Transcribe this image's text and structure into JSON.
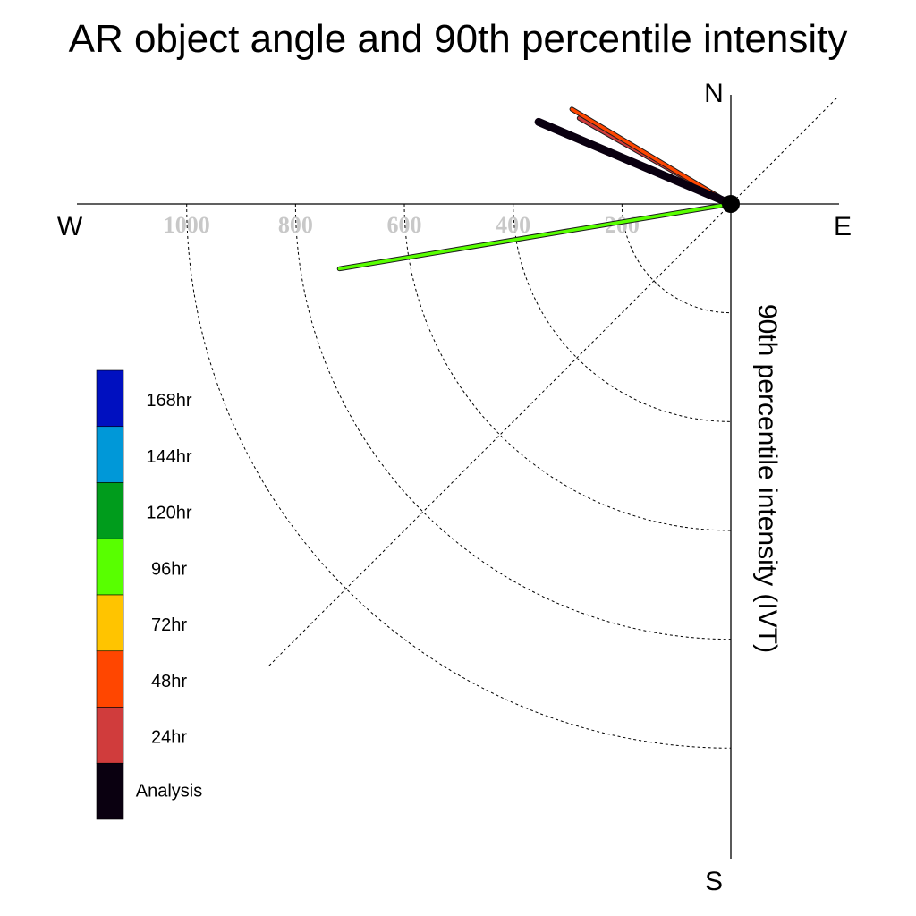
{
  "chart_data": {
    "type": "polar-vector",
    "title": "AR object angle and 90th percentile intensity",
    "ylabel": "90th percentile intensity (IVT)",
    "compass": {
      "north": "N",
      "south": "S",
      "east": "E",
      "west": "W"
    },
    "radial_ticks": [
      200,
      400,
      600,
      800,
      1000
    ],
    "radial_tick_labels": [
      "200",
      "400",
      "600",
      "800",
      "1000"
    ],
    "radial_max": 1200,
    "diagonal_guide_deg": 45,
    "grid": "dashed quarter circles",
    "legend": {
      "placement": "left",
      "entries": [
        {
          "label": "168hr",
          "color": "#0010c0"
        },
        {
          "label": "144hr",
          "color": "#0098d8"
        },
        {
          "label": "120hr",
          "color": "#009c1c"
        },
        {
          "label": "96hr",
          "color": "#58ff00"
        },
        {
          "label": "72hr",
          "color": "#ffc400"
        },
        {
          "label": "48hr",
          "color": "#ff4600"
        },
        {
          "label": "24hr",
          "color": "#d03c3c"
        },
        {
          "label": "Analysis",
          "color": "#0a0010"
        }
      ]
    },
    "series": [
      {
        "name": "96hr",
        "color": "#58ff00",
        "angle_deg": 189.4,
        "intensity": 729
      },
      {
        "name": "24hr",
        "color": "#d03c3c",
        "angle_deg": 150.5,
        "intensity": 320
      },
      {
        "name": "48hr",
        "color": "#ff4600",
        "angle_deg": 149.2,
        "intensity": 340
      },
      {
        "name": "Analysis",
        "color": "#0a0010",
        "angle_deg": 156.9,
        "intensity": 384
      }
    ]
  }
}
